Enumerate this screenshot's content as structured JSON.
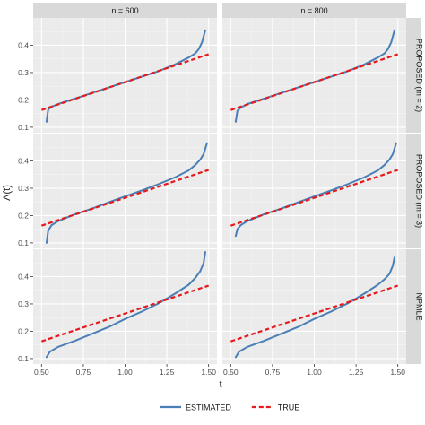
{
  "chart_data": {
    "type": "line",
    "facet_columns": [
      "n = 600",
      "n = 800"
    ],
    "facet_rows": [
      "PROPOSED (m = 2)",
      "PROPOSED (m = 3)",
      "NPMLE"
    ],
    "xlabel": "t",
    "ylabel": "Λ(t)",
    "xlim": [
      0.45,
      1.55
    ],
    "ylim": [
      0.08,
      0.5
    ],
    "x_ticks": [
      "0.50",
      "0.75",
      "1.00",
      "1.25",
      "1.50"
    ],
    "x_tick_values": [
      0.5,
      0.75,
      1.0,
      1.25,
      1.5
    ],
    "y_ticks": [
      "0.1",
      "0.2",
      "0.3",
      "0.4"
    ],
    "y_tick_values": [
      0.1,
      0.2,
      0.3,
      0.4
    ],
    "legend": {
      "position": "bottom",
      "entries": [
        {
          "label": "ESTIMATED",
          "color": "#4a7fb5",
          "style": "solid"
        },
        {
          "label": "TRUE",
          "color": "#e41a1c",
          "style": "dashed"
        }
      ]
    },
    "grid": true,
    "panels": [
      {
        "row": 0,
        "col": 0,
        "series": [
          {
            "name": "ESTIMATED",
            "x": [
              0.53,
              0.54,
              0.56,
              0.6,
              0.7,
              0.8,
              0.9,
              1.0,
              1.1,
              1.2,
              1.3,
              1.38,
              1.42,
              1.44,
              1.46,
              1.48
            ],
            "y": [
              0.12,
              0.165,
              0.175,
              0.185,
              0.205,
              0.225,
              0.245,
              0.265,
              0.285,
              0.305,
              0.33,
              0.355,
              0.37,
              0.385,
              0.41,
              0.455
            ]
          },
          {
            "name": "TRUE",
            "x": [
              0.5,
              1.5
            ],
            "y": [
              0.163,
              0.367
            ]
          }
        ]
      },
      {
        "row": 0,
        "col": 1,
        "series": [
          {
            "name": "ESTIMATED",
            "x": [
              0.53,
              0.54,
              0.56,
              0.6,
              0.7,
              0.8,
              0.9,
              1.0,
              1.1,
              1.2,
              1.3,
              1.38,
              1.42,
              1.44,
              1.46,
              1.48
            ],
            "y": [
              0.12,
              0.16,
              0.172,
              0.185,
              0.205,
              0.225,
              0.245,
              0.265,
              0.285,
              0.305,
              0.33,
              0.355,
              0.37,
              0.385,
              0.41,
              0.455
            ]
          },
          {
            "name": "TRUE",
            "x": [
              0.5,
              1.5
            ],
            "y": [
              0.163,
              0.367
            ]
          }
        ]
      },
      {
        "row": 1,
        "col": 0,
        "series": [
          {
            "name": "ESTIMATED",
            "x": [
              0.53,
              0.54,
              0.56,
              0.6,
              0.7,
              0.8,
              0.9,
              1.0,
              1.1,
              1.2,
              1.3,
              1.38,
              1.42,
              1.45,
              1.47,
              1.49
            ],
            "y": [
              0.1,
              0.145,
              0.165,
              0.18,
              0.205,
              0.225,
              0.248,
              0.27,
              0.292,
              0.315,
              0.34,
              0.365,
              0.385,
              0.405,
              0.425,
              0.465
            ]
          },
          {
            "name": "TRUE",
            "x": [
              0.5,
              1.5
            ],
            "y": [
              0.163,
              0.367
            ]
          }
        ]
      },
      {
        "row": 1,
        "col": 1,
        "series": [
          {
            "name": "ESTIMATED",
            "x": [
              0.53,
              0.54,
              0.56,
              0.6,
              0.7,
              0.8,
              0.9,
              1.0,
              1.1,
              1.2,
              1.3,
              1.38,
              1.42,
              1.45,
              1.47,
              1.49
            ],
            "y": [
              0.125,
              0.15,
              0.165,
              0.18,
              0.205,
              0.225,
              0.248,
              0.27,
              0.292,
              0.315,
              0.34,
              0.365,
              0.385,
              0.405,
              0.425,
              0.465
            ]
          },
          {
            "name": "TRUE",
            "x": [
              0.5,
              1.5
            ],
            "y": [
              0.163,
              0.367
            ]
          }
        ]
      },
      {
        "row": 2,
        "col": 0,
        "series": [
          {
            "name": "ESTIMATED",
            "x": [
              0.53,
              0.55,
              0.6,
              0.7,
              0.8,
              0.9,
              1.0,
              1.1,
              1.2,
              1.3,
              1.38,
              1.42,
              1.45,
              1.47,
              1.48
            ],
            "y": [
              0.105,
              0.125,
              0.143,
              0.165,
              0.19,
              0.215,
              0.245,
              0.272,
              0.302,
              0.338,
              0.37,
              0.395,
              0.42,
              0.45,
              0.49
            ]
          },
          {
            "name": "TRUE",
            "x": [
              0.5,
              1.5
            ],
            "y": [
              0.163,
              0.367
            ]
          }
        ]
      },
      {
        "row": 2,
        "col": 1,
        "series": [
          {
            "name": "ESTIMATED",
            "x": [
              0.53,
              0.55,
              0.6,
              0.7,
              0.8,
              0.9,
              1.0,
              1.1,
              1.2,
              1.3,
              1.38,
              1.42,
              1.45,
              1.47,
              1.48
            ],
            "y": [
              0.105,
              0.125,
              0.143,
              0.165,
              0.19,
              0.215,
              0.245,
              0.272,
              0.302,
              0.338,
              0.37,
              0.39,
              0.41,
              0.44,
              0.47
            ]
          },
          {
            "name": "TRUE",
            "x": [
              0.5,
              1.5
            ],
            "y": [
              0.163,
              0.367
            ]
          }
        ]
      }
    ]
  }
}
